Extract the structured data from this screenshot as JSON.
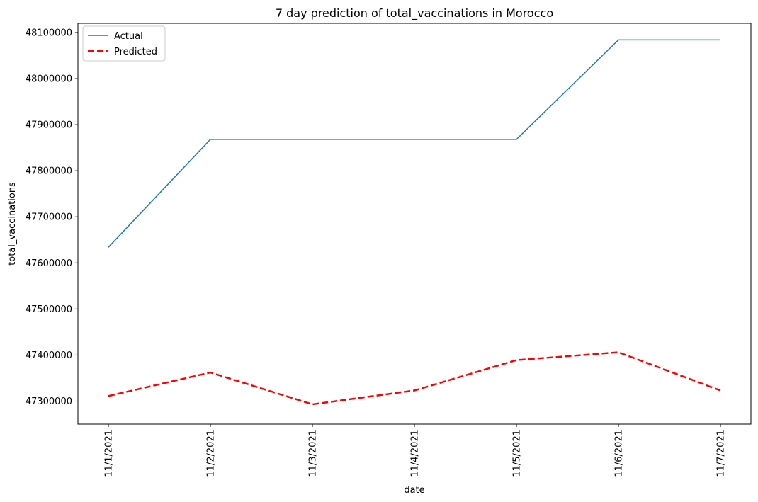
{
  "chart_data": {
    "type": "line",
    "title": "7 day prediction of total_vaccinations in Morocco",
    "xlabel": "date",
    "ylabel": "total_vaccinations",
    "categories": [
      "11/1/2021",
      "11/2/2021",
      "11/3/2021",
      "11/4/2021",
      "11/5/2021",
      "11/6/2021",
      "11/7/2021"
    ],
    "yticks": [
      47300000,
      47400000,
      47500000,
      47600000,
      47700000,
      47800000,
      47900000,
      48000000,
      48100000
    ],
    "ytick_labels": [
      "47300000",
      "47400000",
      "47500000",
      "47600000",
      "47700000",
      "47800000",
      "47900000",
      "48000000",
      "48100000"
    ],
    "ylim": [
      47250000,
      48120000
    ],
    "grid": false,
    "legend_position": "top-left",
    "series": [
      {
        "name": "Actual",
        "color": "#1f77b4",
        "style": "solid",
        "values": [
          47634000,
          47868000,
          47868000,
          47868000,
          47868000,
          48084000,
          48084000
        ]
      },
      {
        "name": "Predicted",
        "color": "#ff0000",
        "style": "dashed",
        "values": [
          47311000,
          47362000,
          47293000,
          47323000,
          47389000,
          47406000,
          47323000
        ]
      }
    ]
  }
}
